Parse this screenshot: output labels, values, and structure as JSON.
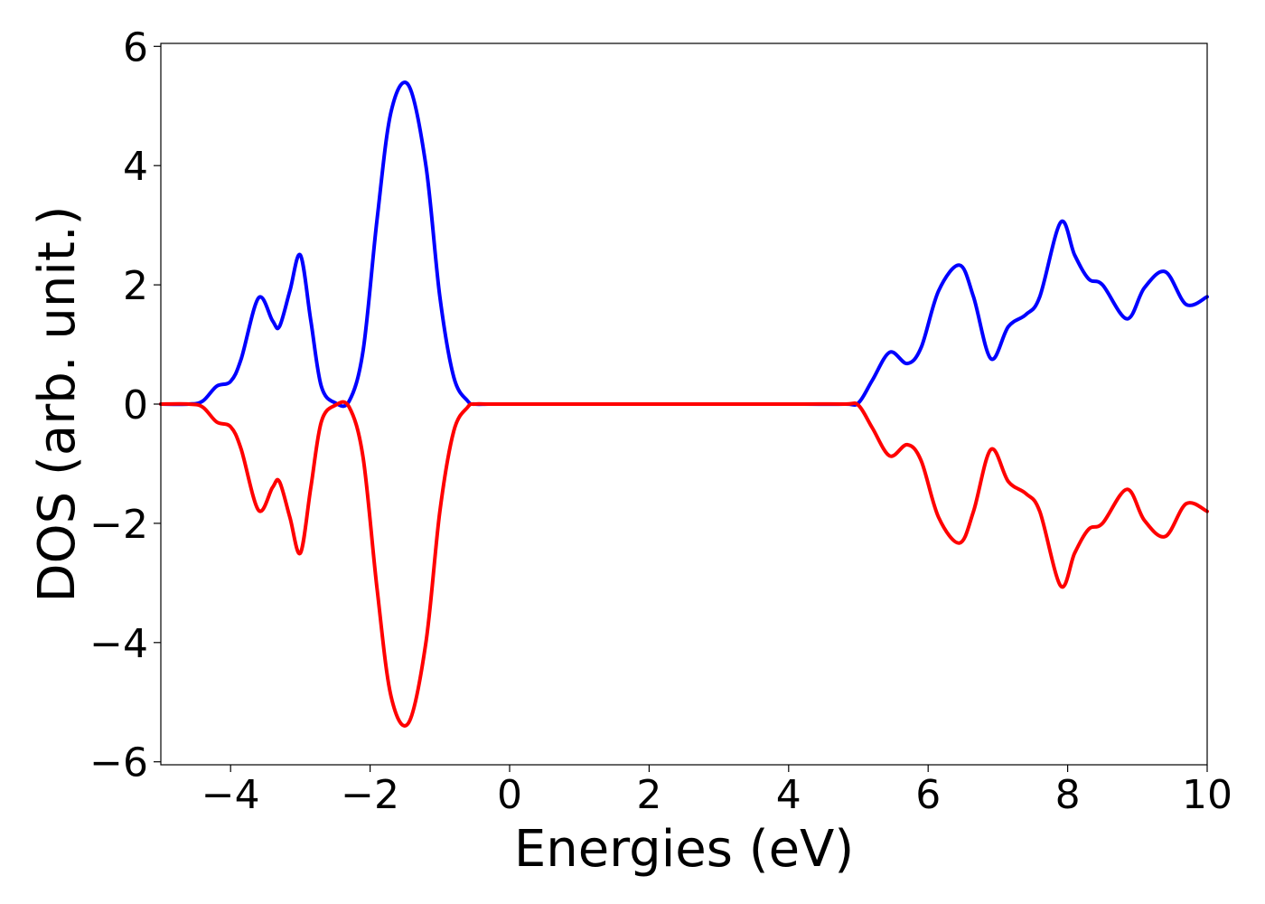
{
  "chart_data": {
    "type": "line",
    "title": "",
    "xlabel": "Energies (eV)",
    "ylabel": "DOS (arb. unit.)",
    "xlim": [
      -5,
      10
    ],
    "ylim": [
      -6.05,
      6.05
    ],
    "grid": false,
    "legend": "none",
    "xticks": [
      -4,
      -2,
      0,
      2,
      4,
      6,
      8,
      10
    ],
    "xtick_labels": [
      "−4",
      "−2",
      "0",
      "2",
      "4",
      "6",
      "8",
      "10"
    ],
    "yticks": [
      -6,
      -4,
      -2,
      0,
      2,
      4,
      6
    ],
    "ytick_labels": [
      "−6",
      "−4",
      "−2",
      "0",
      "2",
      "4",
      "6"
    ],
    "series": [
      {
        "color": "#0000ff",
        "x": [
          -5.0,
          -4.6,
          -4.4,
          -4.2,
          -4.0,
          -3.85,
          -3.6,
          -3.4,
          -3.3,
          -3.15,
          -3.0,
          -2.85,
          -2.7,
          -2.5,
          -2.3,
          -2.1,
          -1.9,
          -1.7,
          -1.45,
          -1.2,
          -1.0,
          -0.8,
          -0.6,
          -0.5,
          -0.3,
          0.0,
          2.0,
          4.0,
          4.8,
          5.0,
          5.2,
          5.45,
          5.7,
          5.9,
          6.15,
          6.45,
          6.65,
          6.9,
          7.15,
          7.4,
          7.6,
          7.9,
          8.1,
          8.3,
          8.5,
          8.85,
          9.1,
          9.4,
          9.7,
          10.0
        ],
        "y": [
          0.0,
          0.0,
          0.05,
          0.3,
          0.38,
          0.75,
          1.78,
          1.4,
          1.3,
          1.9,
          2.5,
          1.4,
          0.3,
          0.02,
          0.05,
          0.9,
          3.1,
          4.9,
          5.35,
          4.0,
          1.8,
          0.45,
          0.05,
          0.0,
          0.0,
          0.0,
          0.0,
          0.0,
          0.0,
          0.02,
          0.4,
          0.87,
          0.68,
          0.95,
          1.9,
          2.33,
          1.8,
          0.76,
          1.3,
          1.5,
          1.8,
          3.05,
          2.5,
          2.1,
          2.0,
          1.43,
          1.95,
          2.22,
          1.67,
          1.8
        ]
      },
      {
        "color": "#ff0000",
        "x": [
          -5.0,
          -4.6,
          -4.4,
          -4.2,
          -4.0,
          -3.85,
          -3.6,
          -3.4,
          -3.3,
          -3.15,
          -3.0,
          -2.85,
          -2.7,
          -2.5,
          -2.3,
          -2.1,
          -1.9,
          -1.7,
          -1.45,
          -1.2,
          -1.0,
          -0.8,
          -0.6,
          -0.5,
          -0.3,
          0.0,
          2.0,
          4.0,
          4.8,
          5.0,
          5.2,
          5.45,
          5.7,
          5.9,
          6.15,
          6.45,
          6.65,
          6.9,
          7.15,
          7.4,
          7.6,
          7.9,
          8.1,
          8.3,
          8.5,
          8.85,
          9.1,
          9.4,
          9.7,
          10.0
        ],
        "y": [
          0.0,
          0.0,
          -0.05,
          -0.3,
          -0.38,
          -0.75,
          -1.78,
          -1.4,
          -1.3,
          -1.9,
          -2.5,
          -1.4,
          -0.3,
          -0.02,
          -0.05,
          -0.9,
          -3.1,
          -4.9,
          -5.35,
          -4.0,
          -1.8,
          -0.45,
          -0.05,
          0.0,
          0.0,
          0.0,
          0.0,
          0.0,
          0.0,
          -0.02,
          -0.4,
          -0.87,
          -0.68,
          -0.95,
          -1.9,
          -2.33,
          -1.8,
          -0.76,
          -1.3,
          -1.5,
          -1.8,
          -3.05,
          -2.5,
          -2.1,
          -2.0,
          -1.43,
          -1.95,
          -2.22,
          -1.67,
          -1.8
        ]
      }
    ]
  }
}
